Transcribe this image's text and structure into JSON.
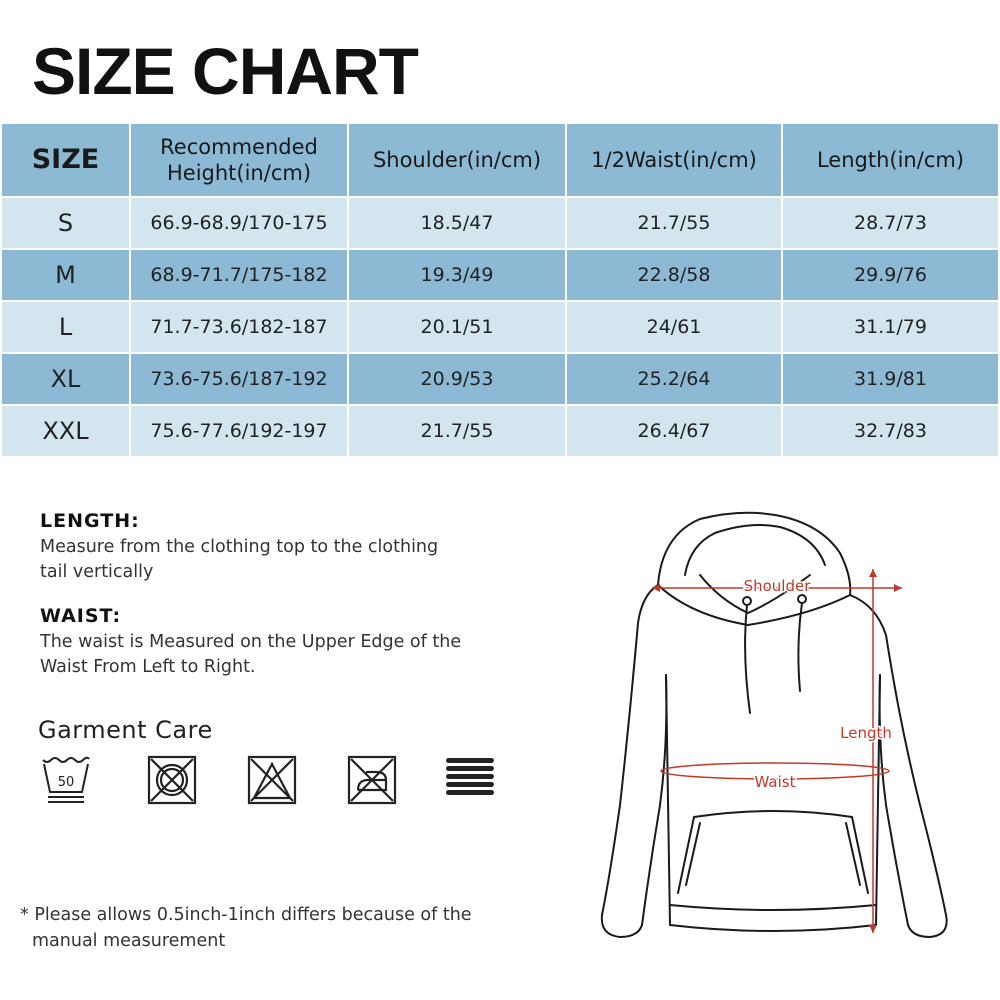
{
  "title": "SIZE CHART",
  "table": {
    "headers": {
      "size": "SIZE",
      "height_line1": "Recommended",
      "height_line2": "Height(in/cm)",
      "shoulder": "Shoulder(in/cm)",
      "waist": "1/2Waist(in/cm)",
      "length": "Length(in/cm)"
    },
    "rows": [
      {
        "size": "S",
        "height": "66.9-68.9/170-175",
        "shoulder": "18.5/47",
        "waist": "21.7/55",
        "length": "28.7/73"
      },
      {
        "size": "M",
        "height": "68.9-71.7/175-182",
        "shoulder": "19.3/49",
        "waist": "22.8/58",
        "length": "29.9/76"
      },
      {
        "size": "L",
        "height": "71.7-73.6/182-187",
        "shoulder": "20.1/51",
        "waist": "24/61",
        "length": "31.1/79"
      },
      {
        "size": "XL",
        "height": "73.6-75.6/187-192",
        "shoulder": "20.9/53",
        "waist": "25.2/64",
        "length": "31.9/81"
      },
      {
        "size": "XXL",
        "height": "75.6-77.6/192-197",
        "shoulder": "21.7/55",
        "waist": "26.4/67",
        "length": "32.7/83"
      }
    ]
  },
  "length_info": {
    "heading": "LENGTH:",
    "line1": "Measure from the clothing top to the clothing",
    "line2": "tail vertically"
  },
  "waist_info": {
    "heading": "WAIST:",
    "line1": "The waist is Measured on the Upper Edge of the",
    "line2": "Waist From Left to Right."
  },
  "care": {
    "title": "Garment Care",
    "wash_temp": "50",
    "icons": [
      "wash-50-icon",
      "do-not-tumble-dry-icon",
      "do-not-bleach-icon",
      "do-not-iron-icon",
      "dry-flat-icon"
    ]
  },
  "note": {
    "line1": "* Please allows 0.5inch-1inch differs because of the",
    "line2": "manual measurement"
  },
  "diagram": {
    "shoulder_label": "Shoulder",
    "length_label": "Length",
    "waist_label": "Waist",
    "line_color": "#1a1a1a",
    "measure_color": "#c0392b"
  },
  "colors": {
    "header_bg": "#8cb9d4",
    "row_light": "#d3e6f0",
    "row_dark": "#8cb9d4"
  }
}
